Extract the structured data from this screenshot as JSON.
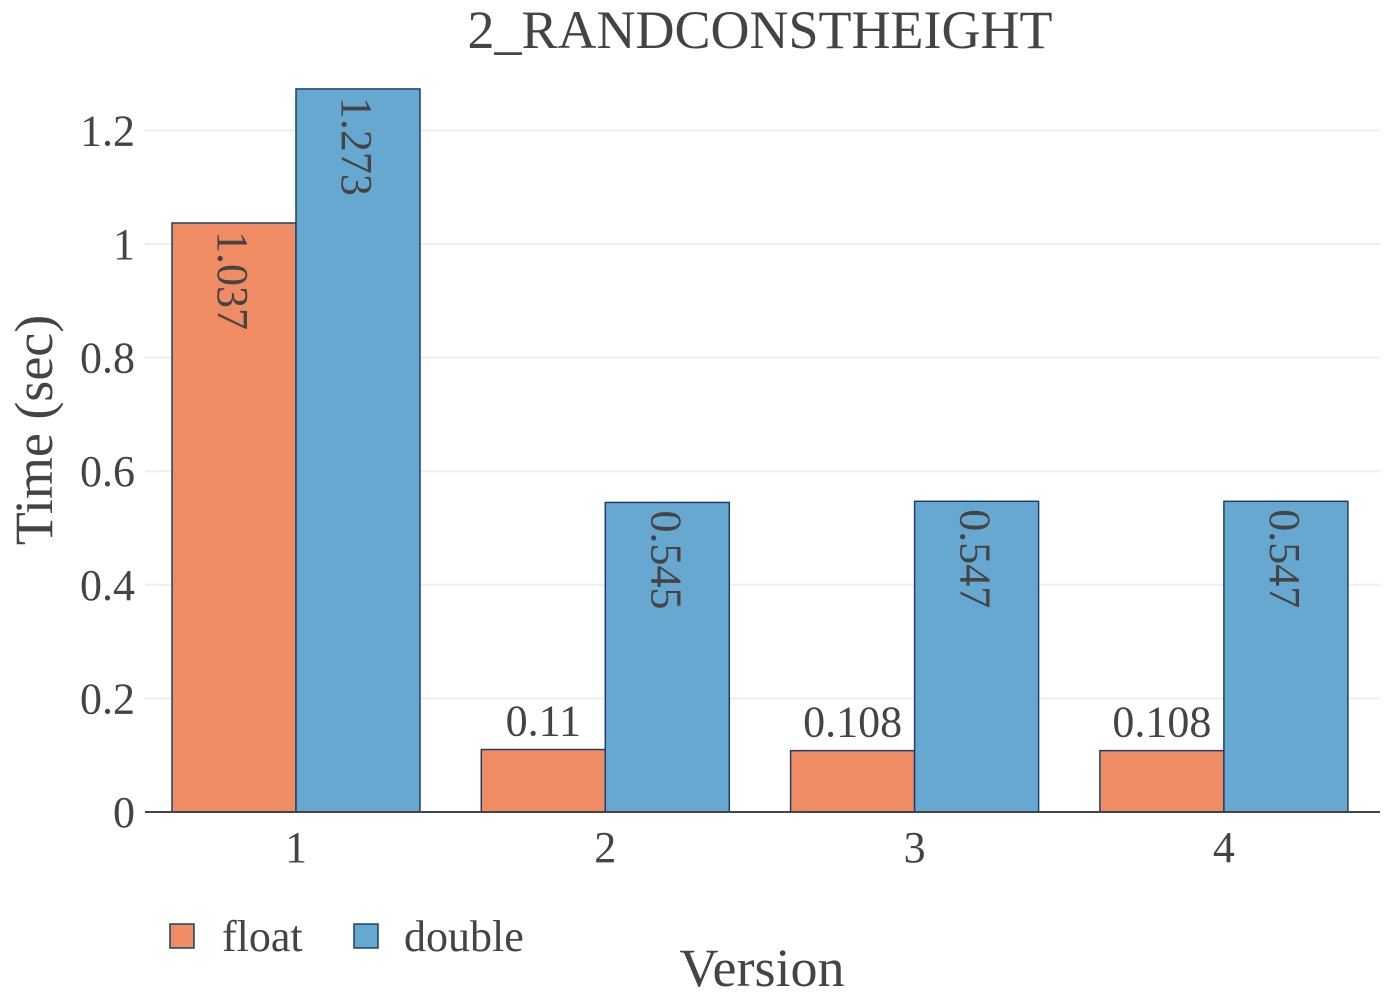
{
  "chart_data": {
    "type": "bar",
    "title": "2_RANDCONSTHEIGHT",
    "xlabel": "Version",
    "ylabel": "Time (sec)",
    "categories": [
      "1",
      "2",
      "3",
      "4"
    ],
    "series": [
      {
        "name": "float",
        "color": "#f08c64",
        "values": [
          1.037,
          0.11,
          0.108,
          0.108
        ],
        "labels": [
          "1.037",
          "0.11",
          "0.108",
          "0.108"
        ]
      },
      {
        "name": "double",
        "color": "#67a8d0",
        "values": [
          1.273,
          0.545,
          0.547,
          0.547
        ],
        "labels": [
          "1.273",
          "0.545",
          "0.547",
          "0.547"
        ]
      }
    ],
    "ylim": [
      0,
      1.3
    ],
    "yticks": [
      0,
      0.2,
      0.4,
      0.6,
      0.8,
      1,
      1.2
    ],
    "ytick_labels": [
      "0",
      "0.2",
      "0.4",
      "0.6",
      "0.8",
      "1",
      "1.2"
    ],
    "grid": true,
    "legend_position": "bottom-left",
    "bar_outline_color": "#1f3e6e"
  }
}
